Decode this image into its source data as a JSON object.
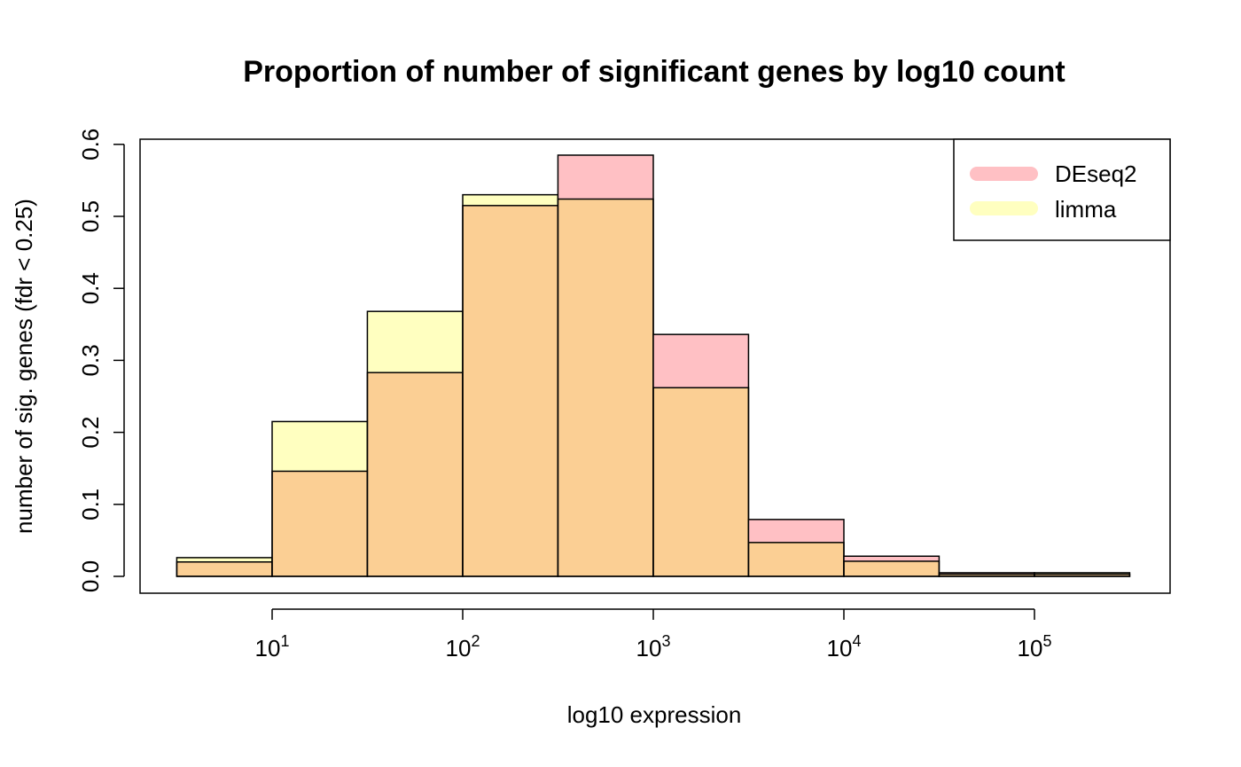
{
  "chart_data": {
    "type": "bar",
    "title": "Proportion of number of significant genes by log10 count",
    "xlabel": "log10 expression",
    "ylabel": "number of sig. genes (fdr < 0.25)",
    "x_scale": "log10",
    "x_ticks": [
      {
        "value": 10,
        "base": "10",
        "exp": "1"
      },
      {
        "value": 100,
        "base": "10",
        "exp": "2"
      },
      {
        "value": 1000,
        "base": "10",
        "exp": "3"
      },
      {
        "value": 10000,
        "base": "10",
        "exp": "4"
      },
      {
        "value": 100000,
        "base": "10",
        "exp": "5"
      }
    ],
    "y_ticks": [
      "0.0",
      "0.1",
      "0.2",
      "0.3",
      "0.4",
      "0.5",
      "0.6"
    ],
    "ylim": [
      0,
      0.6
    ],
    "bins": [
      [
        3.16,
        10
      ],
      [
        10,
        31.6
      ],
      [
        31.6,
        100
      ],
      [
        100,
        316
      ],
      [
        316,
        1000
      ],
      [
        1000,
        3160
      ],
      [
        3160,
        10000
      ],
      [
        10000,
        31600
      ],
      [
        31600,
        100000
      ],
      [
        100000,
        316000
      ]
    ],
    "series": [
      {
        "name": "DEseq2",
        "color": "#FFC0C4",
        "values": [
          0.02,
          0.146,
          0.283,
          0.515,
          0.585,
          0.336,
          0.079,
          0.028,
          0.005,
          0.003
        ]
      },
      {
        "name": "limma",
        "color": "#FFFFC0",
        "values": [
          0.026,
          0.215,
          0.368,
          0.53,
          0.524,
          0.262,
          0.047,
          0.021,
          0.003,
          0.005
        ]
      }
    ],
    "overlap_color": "#FBCF94",
    "legend_position": "top-right",
    "grid": false
  }
}
